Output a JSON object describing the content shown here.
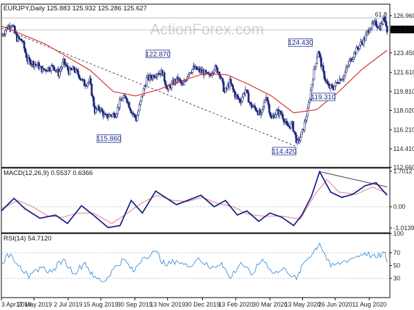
{
  "watermark": "ActionForex.com",
  "chart_data": [
    {
      "type": "candlestick",
      "header": "EURJPY,Daily  125.883 125.932 125.286 125.627",
      "fib_label": "61.8",
      "fib_level": 126.75,
      "last_price": 125.627,
      "last_price_label": "125.627",
      "y_ticks": [
        126.96,
        125.627,
        123.45,
        121.61,
        119.81,
        118.02,
        116.21,
        114.41,
        112.66
      ],
      "y_tick_labels": [
        "126.960",
        "125.627",
        "123.450",
        "121.610",
        "119.810",
        "118.020",
        "116.210",
        "114.410",
        "112.660"
      ],
      "ylim": [
        112.66,
        128.05
      ],
      "annotations": [
        {
          "text": "122.870",
          "date": "2019-10-31",
          "price": 122.87
        },
        {
          "text": "115.860",
          "date": "2019-08-26",
          "price": 115.86
        },
        {
          "text": "124.430",
          "date": "2020-05-29",
          "price": 124.43
        },
        {
          "text": "119.310",
          "date": "2020-06-22",
          "price": 119.31
        },
        {
          "text": "114.420",
          "date": "2020-05-06",
          "price": 114.42
        }
      ],
      "trendline": {
        "start": {
          "date": "2019-04-03",
          "price": 125.8
        },
        "end": {
          "date": "2020-05-06",
          "price": 114.6
        }
      },
      "candles_close": [
        [
          "2019-04-03",
          125.0
        ],
        [
          "2019-04-10",
          125.8
        ],
        [
          "2019-04-17",
          126.2
        ],
        [
          "2019-04-24",
          124.8
        ],
        [
          "2019-05-01",
          124.6
        ],
        [
          "2019-05-08",
          122.8
        ],
        [
          "2019-05-15",
          122.5
        ],
        [
          "2019-05-22",
          122.3
        ],
        [
          "2019-05-29",
          121.8
        ],
        [
          "2019-06-05",
          122.0
        ],
        [
          "2019-06-12",
          122.2
        ],
        [
          "2019-06-19",
          121.5
        ],
        [
          "2019-06-26",
          122.6
        ],
        [
          "2019-07-03",
          121.7
        ],
        [
          "2019-07-10",
          121.9
        ],
        [
          "2019-07-17",
          121.3
        ],
        [
          "2019-07-24",
          120.5
        ],
        [
          "2019-07-31",
          120.8
        ],
        [
          "2019-08-07",
          118.0
        ],
        [
          "2019-08-14",
          118.2
        ],
        [
          "2019-08-21",
          117.4
        ],
        [
          "2019-08-28",
          117.6
        ],
        [
          "2019-09-04",
          117.7
        ],
        [
          "2019-09-11",
          119.0
        ],
        [
          "2019-09-18",
          119.3
        ],
        [
          "2019-09-25",
          118.0
        ],
        [
          "2019-10-02",
          117.2
        ],
        [
          "2019-10-09",
          119.2
        ],
        [
          "2019-10-16",
          121.0
        ],
        [
          "2019-10-23",
          121.2
        ],
        [
          "2019-10-30",
          121.6
        ],
        [
          "2019-11-06",
          121.6
        ],
        [
          "2019-11-13",
          120.0
        ],
        [
          "2019-11-20",
          120.6
        ],
        [
          "2019-11-27",
          121.0
        ],
        [
          "2019-12-04",
          120.3
        ],
        [
          "2019-12-11",
          121.6
        ],
        [
          "2019-12-18",
          122.0
        ],
        [
          "2019-12-25",
          121.8
        ],
        [
          "2020-01-01",
          121.6
        ],
        [
          "2020-01-08",
          121.2
        ],
        [
          "2020-01-15",
          122.1
        ],
        [
          "2020-01-22",
          121.6
        ],
        [
          "2020-01-29",
          119.7
        ],
        [
          "2020-02-05",
          120.7
        ],
        [
          "2020-02-12",
          119.5
        ],
        [
          "2020-02-19",
          118.9
        ],
        [
          "2020-02-26",
          120.0
        ],
        [
          "2020-03-04",
          118.5
        ],
        [
          "2020-03-11",
          118.2
        ],
        [
          "2020-03-18",
          117.5
        ],
        [
          "2020-03-25",
          119.5
        ],
        [
          "2020-04-01",
          117.2
        ],
        [
          "2020-04-08",
          117.9
        ],
        [
          "2020-04-15",
          117.7
        ],
        [
          "2020-04-22",
          116.5
        ],
        [
          "2020-04-29",
          116.7
        ],
        [
          "2020-05-06",
          114.9
        ],
        [
          "2020-05-13",
          116.0
        ],
        [
          "2020-05-20",
          118.0
        ],
        [
          "2020-05-27",
          121.2
        ],
        [
          "2020-06-03",
          123.7
        ],
        [
          "2020-06-10",
          121.5
        ],
        [
          "2020-06-17",
          120.2
        ],
        [
          "2020-06-24",
          120.2
        ],
        [
          "2020-07-01",
          120.9
        ],
        [
          "2020-07-08",
          121.3
        ],
        [
          "2020-07-15",
          122.6
        ],
        [
          "2020-07-22",
          123.4
        ],
        [
          "2020-07-29",
          124.2
        ],
        [
          "2020-08-05",
          124.8
        ],
        [
          "2020-08-12",
          125.9
        ],
        [
          "2020-08-19",
          126.2
        ],
        [
          "2020-08-26",
          125.9
        ],
        [
          "2020-09-01",
          126.9
        ],
        [
          "2020-09-04",
          125.627
        ]
      ],
      "ema_label": "",
      "ema": [
        [
          "2019-04-03",
          126.0
        ],
        [
          "2019-06-01",
          124.3
        ],
        [
          "2019-08-01",
          121.8
        ],
        [
          "2019-09-01",
          119.8
        ],
        [
          "2019-10-01",
          119.4
        ],
        [
          "2019-11-01",
          120.0
        ],
        [
          "2019-12-01",
          120.8
        ],
        [
          "2020-01-01",
          121.5
        ],
        [
          "2020-02-01",
          121.4
        ],
        [
          "2020-03-01",
          120.5
        ],
        [
          "2020-04-01",
          119.4
        ],
        [
          "2020-05-01",
          117.8
        ],
        [
          "2020-06-01",
          118.1
        ],
        [
          "2020-07-01",
          119.8
        ],
        [
          "2020-08-01",
          121.9
        ],
        [
          "2020-09-04",
          123.7
        ]
      ]
    },
    {
      "type": "line",
      "header": "MACD(12,26,9) 0.5537 0.6366",
      "y_ticks": [
        1.7012,
        0.0,
        -1.0139
      ],
      "y_tick_labels": [
        "1.7012",
        "0.00",
        "-1.0139"
      ],
      "ylim": [
        -1.25,
        1.85
      ],
      "series": [
        {
          "name": "",
          "points": [
            [
              "2019-04-03",
              -0.2
            ],
            [
              "2019-04-20",
              0.4
            ],
            [
              "2019-05-05",
              -0.1
            ],
            [
              "2019-05-25",
              -0.55
            ],
            [
              "2019-06-15",
              -0.4
            ],
            [
              "2019-07-01",
              -0.8
            ],
            [
              "2019-07-20",
              0.05
            ],
            [
              "2019-08-05",
              -0.4
            ],
            [
              "2019-08-25",
              -1.0
            ],
            [
              "2019-09-10",
              -0.9
            ],
            [
              "2019-09-25",
              0.3
            ],
            [
              "2019-10-10",
              -0.3
            ],
            [
              "2019-10-28",
              0.75
            ],
            [
              "2019-11-10",
              0.45
            ],
            [
              "2019-11-25",
              0.1
            ],
            [
              "2019-12-10",
              0.3
            ],
            [
              "2019-12-28",
              0.55
            ],
            [
              "2020-01-15",
              0.0
            ],
            [
              "2020-01-30",
              0.3
            ],
            [
              "2020-02-15",
              -0.4
            ],
            [
              "2020-02-28",
              -0.2
            ],
            [
              "2020-03-15",
              -0.7
            ],
            [
              "2020-03-30",
              -0.3
            ],
            [
              "2020-04-15",
              -0.5
            ],
            [
              "2020-05-01",
              -0.9
            ],
            [
              "2020-05-12",
              -0.4
            ],
            [
              "2020-05-25",
              0.5
            ],
            [
              "2020-06-05",
              1.68
            ],
            [
              "2020-06-20",
              0.7
            ],
            [
              "2020-07-05",
              0.45
            ],
            [
              "2020-07-20",
              0.6
            ],
            [
              "2020-08-05",
              1.0
            ],
            [
              "2020-08-20",
              1.15
            ],
            [
              "2020-09-04",
              0.55
            ]
          ]
        },
        {
          "name": "",
          "points": [
            [
              "2019-04-03",
              -0.1
            ],
            [
              "2019-04-25",
              0.3
            ],
            [
              "2019-05-15",
              0.0
            ],
            [
              "2019-06-05",
              -0.45
            ],
            [
              "2019-06-25",
              -0.5
            ],
            [
              "2019-07-15",
              -0.3
            ],
            [
              "2019-08-05",
              -0.3
            ],
            [
              "2019-08-30",
              -0.8
            ],
            [
              "2019-09-20",
              -0.3
            ],
            [
              "2019-10-10",
              0.2
            ],
            [
              "2019-10-30",
              0.55
            ],
            [
              "2019-11-20",
              0.3
            ],
            [
              "2019-12-10",
              0.25
            ],
            [
              "2019-12-30",
              0.45
            ],
            [
              "2020-01-20",
              0.15
            ],
            [
              "2020-02-10",
              0.0
            ],
            [
              "2020-02-28",
              -0.35
            ],
            [
              "2020-03-20",
              -0.45
            ],
            [
              "2020-04-15",
              -0.45
            ],
            [
              "2020-05-10",
              -0.6
            ],
            [
              "2020-05-30",
              0.6
            ],
            [
              "2020-06-15",
              1.3
            ],
            [
              "2020-07-01",
              0.7
            ],
            [
              "2020-07-25",
              0.6
            ],
            [
              "2020-08-15",
              0.95
            ],
            [
              "2020-09-04",
              0.64
            ]
          ]
        }
      ],
      "trendline": {
        "start": {
          "date": "2020-06-05",
          "price": 1.68
        },
        "end": {
          "date": "2020-09-04",
          "price": 0.95
        }
      }
    },
    {
      "type": "line",
      "header": "RSI(14) 54.7120",
      "y_ticks": [
        100,
        70,
        50,
        30,
        0
      ],
      "y_tick_labels": [
        "100",
        "70",
        "50",
        "30",
        "0"
      ],
      "ylim": [
        0,
        100
      ],
      "series": [
        {
          "name": "",
          "points": [
            [
              "2019-04-03",
              55
            ],
            [
              "2019-04-15",
              68
            ],
            [
              "2019-04-28",
              50
            ],
            [
              "2019-05-10",
              30
            ],
            [
              "2019-05-25",
              48
            ],
            [
              "2019-06-10",
              40
            ],
            [
              "2019-06-25",
              60
            ],
            [
              "2019-07-10",
              38
            ],
            [
              "2019-07-25",
              55
            ],
            [
              "2019-08-05",
              32
            ],
            [
              "2019-08-20",
              25
            ],
            [
              "2019-09-01",
              45
            ],
            [
              "2019-09-15",
              60
            ],
            [
              "2019-09-28",
              40
            ],
            [
              "2019-10-10",
              62
            ],
            [
              "2019-10-28",
              72
            ],
            [
              "2019-11-10",
              50
            ],
            [
              "2019-11-25",
              58
            ],
            [
              "2019-12-10",
              48
            ],
            [
              "2019-12-25",
              62
            ],
            [
              "2020-01-10",
              45
            ],
            [
              "2020-01-25",
              55
            ],
            [
              "2020-02-05",
              30
            ],
            [
              "2020-02-20",
              55
            ],
            [
              "2020-03-05",
              35
            ],
            [
              "2020-03-20",
              60
            ],
            [
              "2020-04-05",
              38
            ],
            [
              "2020-04-20",
              45
            ],
            [
              "2020-05-05",
              28
            ],
            [
              "2020-05-15",
              55
            ],
            [
              "2020-05-28",
              72
            ],
            [
              "2020-06-05",
              85
            ],
            [
              "2020-06-20",
              48
            ],
            [
              "2020-07-05",
              55
            ],
            [
              "2020-07-20",
              62
            ],
            [
              "2020-08-05",
              70
            ],
            [
              "2020-08-20",
              62
            ],
            [
              "2020-09-01",
              70
            ],
            [
              "2020-09-04",
              54.7
            ]
          ]
        }
      ]
    }
  ],
  "x_axis": {
    "ticks": [
      "2019-04-03",
      "2019-05-17",
      "2019-07-02",
      "2019-08-15",
      "2019-09-30",
      "2019-11-13",
      "2019-12-30",
      "2020-02-13",
      "2020-03-30",
      "2020-05-13",
      "2020-06-26",
      "2020-08-11"
    ],
    "labels": [
      "3 Apr 2019",
      "17 May 2019",
      "2 Jul 2019",
      "15 Aug 2019",
      "30 Sep 2019",
      "13 Nov 2019",
      "30 Dec 2019",
      "13 Feb 2020",
      "30 Mar 2020",
      "13 May 2020",
      "26 Jun 2020",
      "11 Aug 2020"
    ],
    "start": "2019-04-03",
    "end": "2020-09-04"
  },
  "colors": {
    "candle": "#1f2a7a",
    "ema": "#d42020",
    "macd": "#1a1f8a",
    "signal": "#e07a7a",
    "rsi": "#3a8fd8",
    "grid": "#9aa0b0",
    "trend": "#333333"
  }
}
